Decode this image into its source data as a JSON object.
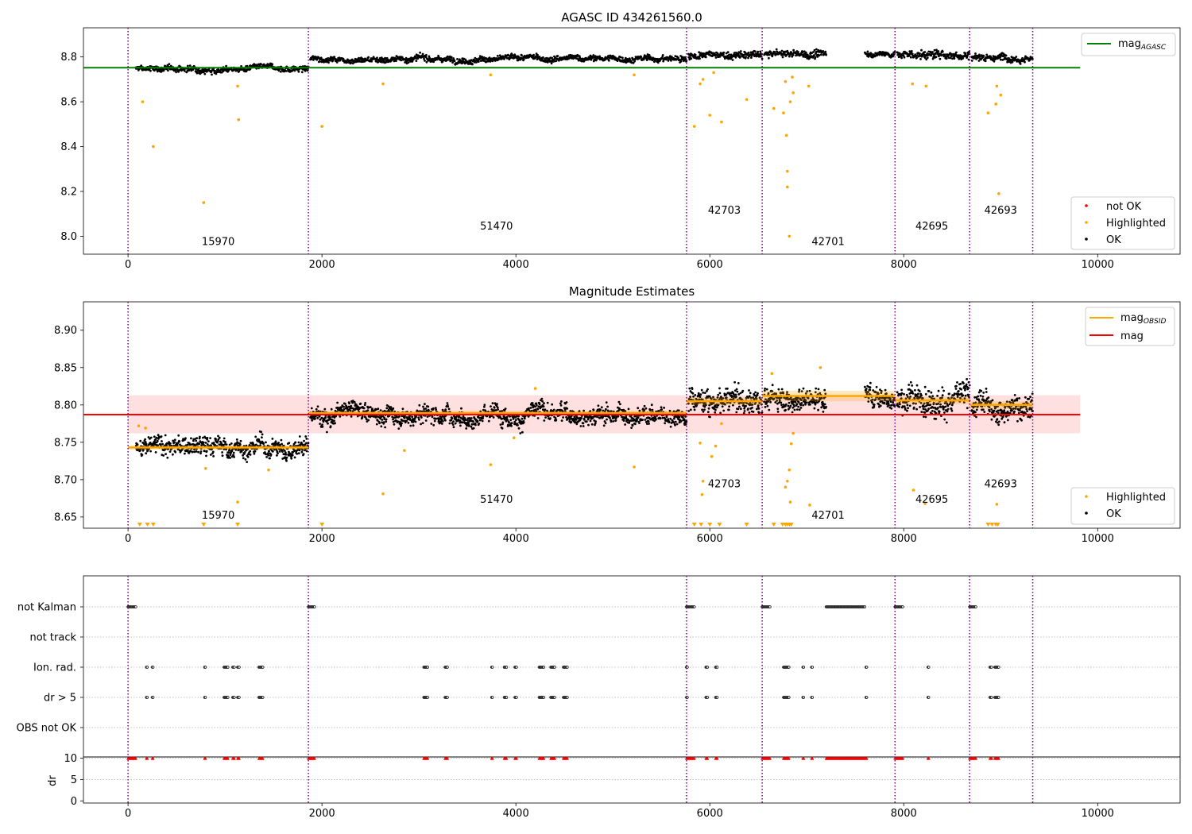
{
  "chart_data": [
    {
      "type": "scatter",
      "title": "AGASC ID 434261560.0",
      "xlim": [
        -460,
        10850
      ],
      "ylim": [
        7.92,
        8.93
      ],
      "xticks": [
        0,
        2000,
        4000,
        6000,
        8000,
        10000
      ],
      "xtick_labels": [
        "0",
        "2000",
        "4000",
        "6000",
        "8000",
        "10000"
      ],
      "yticks": [
        8.0,
        8.2,
        8.4,
        8.6,
        8.8
      ],
      "ytick_labels": [
        "8.0",
        "8.2",
        "8.4",
        "8.6",
        "8.8"
      ],
      "obsid_boundaries": [
        0,
        1860,
        5760,
        6540,
        7910,
        8680,
        9330
      ],
      "obsid_labels": [
        {
          "text": "15970",
          "x": 930,
          "y": 7.96
        },
        {
          "text": "51470",
          "x": 3800,
          "y": 8.03
        },
        {
          "text": "42703",
          "x": 6150,
          "y": 8.1
        },
        {
          "text": "42701",
          "x": 7220,
          "y": 7.96
        },
        {
          "text": "42695",
          "x": 8290,
          "y": 8.03
        },
        {
          "text": "42693",
          "x": 9000,
          "y": 8.1
        }
      ],
      "reference_line": {
        "name": "mag",
        "subscript": "AGASC",
        "y": 8.752,
        "x_range": [
          -460,
          9820
        ],
        "color": "#008000"
      },
      "segments": [
        {
          "x0": 80,
          "x1": 1860,
          "mean": 8.747,
          "spread": 0.012
        },
        {
          "x0": 1880,
          "x1": 5760,
          "mean": 8.792,
          "spread": 0.012
        },
        {
          "x0": 5780,
          "x1": 6540,
          "mean": 8.806,
          "spread": 0.015
        },
        {
          "x0": 6560,
          "x1": 7200,
          "mean": 8.812,
          "spread": 0.015
        },
        {
          "x0": 7600,
          "x1": 7910,
          "mean": 8.814,
          "spread": 0.012
        },
        {
          "x0": 7930,
          "x1": 8680,
          "mean": 8.81,
          "spread": 0.018
        },
        {
          "x0": 8700,
          "x1": 9330,
          "mean": 8.801,
          "spread": 0.015
        }
      ],
      "highlighted_points": [
        [
          150,
          8.6
        ],
        [
          260,
          8.4
        ],
        [
          780,
          8.15
        ],
        [
          1130,
          8.67
        ],
        [
          1140,
          8.52
        ],
        [
          2000,
          8.49
        ],
        [
          2630,
          8.68
        ],
        [
          3740,
          8.72
        ],
        [
          5220,
          8.72
        ],
        [
          5840,
          8.49
        ],
        [
          5900,
          8.68
        ],
        [
          5930,
          8.7
        ],
        [
          6000,
          8.54
        ],
        [
          6040,
          8.73
        ],
        [
          6120,
          8.51
        ],
        [
          6380,
          8.61
        ],
        [
          6660,
          8.57
        ],
        [
          6760,
          8.55
        ],
        [
          6780,
          8.69
        ],
        [
          6790,
          8.45
        ],
        [
          6800,
          8.29
        ],
        [
          6800,
          8.22
        ],
        [
          6820,
          8.0
        ],
        [
          6830,
          8.6
        ],
        [
          6850,
          8.71
        ],
        [
          6860,
          8.64
        ],
        [
          7020,
          8.67
        ],
        [
          8090,
          8.68
        ],
        [
          8230,
          8.67
        ],
        [
          8870,
          8.55
        ],
        [
          8950,
          8.59
        ],
        [
          8960,
          8.67
        ],
        [
          8980,
          8.19
        ],
        [
          9000,
          8.63
        ]
      ],
      "legend_upper": [
        {
          "label": "mag",
          "subscript": "AGASC"
        }
      ],
      "legend_lower": [
        "not OK",
        "Highlighted",
        "OK"
      ],
      "colors": {
        "ok": "#000000",
        "highlighted": "#ffa500",
        "not_ok": "#ff0000",
        "agasc": "#008000",
        "boundary": "#800080"
      }
    },
    {
      "type": "scatter",
      "title": "Magnitude Estimates",
      "xlim": [
        -460,
        10850
      ],
      "ylim": [
        8.635,
        8.938
      ],
      "xticks": [
        0,
        2000,
        4000,
        6000,
        8000,
        10000
      ],
      "xtick_labels": [
        "0",
        "2000",
        "4000",
        "6000",
        "8000",
        "10000"
      ],
      "yticks": [
        8.65,
        8.7,
        8.75,
        8.8,
        8.85,
        8.9
      ],
      "ytick_labels": [
        "8.65",
        "8.70",
        "8.75",
        "8.80",
        "8.85",
        "8.90"
      ],
      "obsid_boundaries": [
        0,
        1860,
        5760,
        6540,
        7910,
        8680,
        9330
      ],
      "obsid_labels": [
        {
          "text": "15970",
          "x": 930,
          "y": 8.648
        },
        {
          "text": "51470",
          "x": 3800,
          "y": 8.669
        },
        {
          "text": "42703",
          "x": 6150,
          "y": 8.69
        },
        {
          "text": "42701",
          "x": 7220,
          "y": 8.648
        },
        {
          "text": "42695",
          "x": 8290,
          "y": 8.669
        },
        {
          "text": "42693",
          "x": 9000,
          "y": 8.69
        }
      ],
      "mag_line": {
        "name": "mag",
        "y": 8.787,
        "band": [
          8.762,
          8.813
        ],
        "x_range": [
          -460,
          9820
        ],
        "color": "#ff0000"
      },
      "obsid_means": [
        {
          "x0": 0,
          "x1": 1860,
          "mean": 8.743,
          "err": 0.003
        },
        {
          "x0": 1860,
          "x1": 5760,
          "mean": 8.789,
          "err": 0.003
        },
        {
          "x0": 5760,
          "x1": 6540,
          "mean": 8.805,
          "err": 0.005
        },
        {
          "x0": 6540,
          "x1": 7910,
          "mean": 8.812,
          "err": 0.007
        },
        {
          "x0": 7910,
          "x1": 8680,
          "mean": 8.806,
          "err": 0.005
        },
        {
          "x0": 8680,
          "x1": 9330,
          "mean": 8.8,
          "err": 0.005
        }
      ],
      "segments": [
        {
          "x0": 80,
          "x1": 1860,
          "mean": 8.743,
          "spread": 0.011
        },
        {
          "x0": 1880,
          "x1": 5760,
          "mean": 8.789,
          "spread": 0.011
        },
        {
          "x0": 5780,
          "x1": 6540,
          "mean": 8.805,
          "spread": 0.014
        },
        {
          "x0": 6560,
          "x1": 7200,
          "mean": 8.811,
          "spread": 0.014
        },
        {
          "x0": 7600,
          "x1": 7910,
          "mean": 8.813,
          "spread": 0.012
        },
        {
          "x0": 7930,
          "x1": 8680,
          "mean": 8.808,
          "spread": 0.017
        },
        {
          "x0": 8700,
          "x1": 9330,
          "mean": 8.8,
          "spread": 0.014
        }
      ],
      "highlighted_points": [
        [
          110,
          8.772
        ],
        [
          180,
          8.769
        ],
        [
          800,
          8.715
        ],
        [
          1130,
          8.67
        ],
        [
          1450,
          8.713
        ],
        [
          2630,
          8.681
        ],
        [
          2850,
          8.739
        ],
        [
          3740,
          8.72
        ],
        [
          3980,
          8.756
        ],
        [
          4200,
          8.822
        ],
        [
          5220,
          8.717
        ],
        [
          5900,
          8.749
        ],
        [
          5930,
          8.698
        ],
        [
          5920,
          8.68
        ],
        [
          6020,
          8.731
        ],
        [
          6060,
          8.745
        ],
        [
          6120,
          8.775
        ],
        [
          6640,
          8.842
        ],
        [
          6780,
          8.69
        ],
        [
          6800,
          8.698
        ],
        [
          6820,
          8.713
        ],
        [
          6830,
          8.67
        ],
        [
          6840,
          8.748
        ],
        [
          6860,
          8.762
        ],
        [
          7030,
          8.666
        ],
        [
          7140,
          8.85
        ],
        [
          8100,
          8.686
        ],
        [
          8220,
          8.668
        ],
        [
          8960,
          8.667
        ]
      ],
      "below_range_markers": [
        120,
        200,
        260,
        780,
        1130,
        2000,
        5840,
        5910,
        6000,
        6100,
        6380,
        6660,
        6750,
        6780,
        6800,
        6820,
        6840,
        8870,
        8910,
        8950,
        8970
      ],
      "legend_upper": [
        {
          "label": "mag",
          "subscript": "OBSID"
        },
        {
          "label": "mag",
          "subscript": ""
        }
      ],
      "legend_lower": [
        "Highlighted",
        "OK"
      ]
    },
    {
      "type": "scatter",
      "title": "",
      "xlim": [
        -460,
        10850
      ],
      "categories": [
        "not Kalman",
        "not track",
        "Ion. rad.",
        "dr > 5",
        "OBS not OK"
      ],
      "obsid_boundaries": [
        0,
        1860,
        5760,
        6540,
        7910,
        8680,
        9330
      ],
      "flags": {
        "not Kalman": [
          [
            0,
            80
          ],
          [
            1860,
            1930
          ],
          [
            5760,
            5840
          ],
          [
            6540,
            6620
          ],
          [
            7200,
            7600
          ],
          [
            7910,
            7990
          ],
          [
            8680,
            8750
          ]
        ],
        "not track": [],
        "Ion. rad.": [
          [
            190,
            200
          ],
          [
            250,
            260
          ],
          [
            790,
            800
          ],
          [
            990,
            1030
          ],
          [
            1080,
            1100
          ],
          [
            1130,
            1150
          ],
          [
            1350,
            1390
          ],
          [
            3050,
            3090
          ],
          [
            3270,
            3300
          ],
          [
            3750,
            3760
          ],
          [
            3880,
            3910
          ],
          [
            3990,
            4010
          ],
          [
            4240,
            4290
          ],
          [
            4360,
            4400
          ],
          [
            4490,
            4530
          ],
          [
            5760,
            5770
          ],
          [
            5960,
            5980
          ],
          [
            6060,
            6080
          ],
          [
            6760,
            6820
          ],
          [
            6960,
            6970
          ],
          [
            7050,
            7060
          ],
          [
            7610,
            7620
          ],
          [
            8250,
            8260
          ],
          [
            8890,
            8910
          ],
          [
            8940,
            8980
          ]
        ],
        "dr > 5": [
          [
            190,
            200
          ],
          [
            250,
            260
          ],
          [
            790,
            800
          ],
          [
            990,
            1030
          ],
          [
            1080,
            1100
          ],
          [
            1130,
            1150
          ],
          [
            1350,
            1390
          ],
          [
            3050,
            3090
          ],
          [
            3270,
            3300
          ],
          [
            3750,
            3760
          ],
          [
            3880,
            3910
          ],
          [
            3990,
            4010
          ],
          [
            4240,
            4290
          ],
          [
            4360,
            4400
          ],
          [
            4490,
            4530
          ],
          [
            5760,
            5770
          ],
          [
            5960,
            5980
          ],
          [
            6060,
            6080
          ],
          [
            6760,
            6820
          ],
          [
            6960,
            6970
          ],
          [
            7050,
            7060
          ],
          [
            7610,
            7620
          ],
          [
            8250,
            8260
          ],
          [
            8890,
            8910
          ],
          [
            8940,
            8980
          ]
        ],
        "OBS not OK": []
      }
    },
    {
      "type": "scatter",
      "title": "",
      "ylabel": "dr",
      "xlim": [
        -460,
        10850
      ],
      "ylim": [
        -0.5,
        10.3
      ],
      "xticks": [
        0,
        2000,
        4000,
        6000,
        8000,
        10000
      ],
      "xtick_labels": [
        "0",
        "2000",
        "4000",
        "6000",
        "8000",
        "10000"
      ],
      "yticks": [
        0,
        5,
        10
      ],
      "ytick_labels": [
        "0",
        "5",
        "10"
      ],
      "obsid_boundaries": [
        0,
        1860,
        5760,
        6540,
        7910,
        8680,
        9330
      ],
      "capped_value": 10,
      "capped_intervals": [
        [
          0,
          80
        ],
        [
          190,
          200
        ],
        [
          250,
          260
        ],
        [
          790,
          800
        ],
        [
          990,
          1030
        ],
        [
          1080,
          1100
        ],
        [
          1130,
          1150
        ],
        [
          1350,
          1390
        ],
        [
          1860,
          1930
        ],
        [
          3050,
          3090
        ],
        [
          3270,
          3300
        ],
        [
          3750,
          3760
        ],
        [
          3880,
          3910
        ],
        [
          3990,
          4010
        ],
        [
          4240,
          4290
        ],
        [
          4360,
          4400
        ],
        [
          4490,
          4530
        ],
        [
          5760,
          5840
        ],
        [
          5960,
          5980
        ],
        [
          6060,
          6080
        ],
        [
          6540,
          6620
        ],
        [
          6760,
          6820
        ],
        [
          6960,
          6970
        ],
        [
          7050,
          7060
        ],
        [
          7200,
          7600
        ],
        [
          7610,
          7620
        ],
        [
          7910,
          7990
        ],
        [
          8250,
          8260
        ],
        [
          8680,
          8750
        ],
        [
          8890,
          8910
        ],
        [
          8940,
          8980
        ]
      ],
      "segments": [
        [
          80,
          1860
        ],
        [
          1930,
          5760
        ],
        [
          5840,
          6540
        ],
        [
          6620,
          7200
        ],
        [
          7600,
          7910
        ],
        [
          7990,
          8680
        ],
        [
          8750,
          9330
        ]
      ]
    }
  ]
}
